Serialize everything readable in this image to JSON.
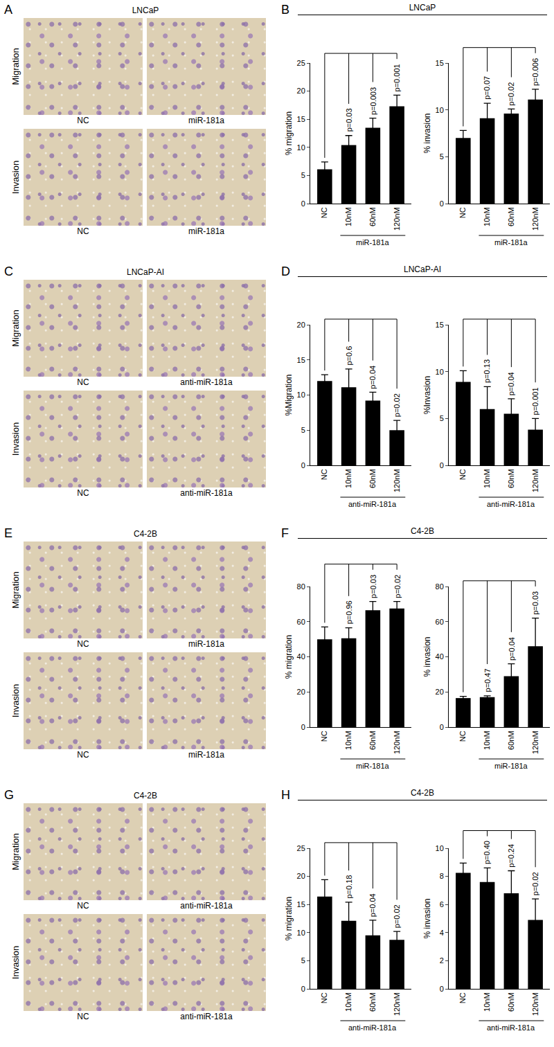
{
  "figure": [
    {
      "image_panel": {
        "letter": "A",
        "title": "LNCaP",
        "rows": [
          "Migration",
          "Invasion"
        ],
        "columns": [
          "NC",
          "miR-181a"
        ]
      },
      "chart_panel": {
        "letter": "B",
        "header": "LNCaP"
      }
    },
    {
      "image_panel": {
        "letter": "C",
        "title": "LNCaP-AI",
        "rows": [
          "Migration",
          "Invasion"
        ],
        "columns": [
          "NC",
          "anti-miR-181a"
        ]
      },
      "chart_panel": {
        "letter": "D",
        "header": "LNCaP-AI"
      }
    },
    {
      "image_panel": {
        "letter": "E",
        "title": "C4-2B",
        "rows": [
          "Migration",
          "Invasion"
        ],
        "columns": [
          "NC",
          "miR-181a"
        ]
      },
      "chart_panel": {
        "letter": "F",
        "header": "C4-2B"
      }
    },
    {
      "image_panel": {
        "letter": "G",
        "title": "C4-2B",
        "rows": [
          "Migration",
          "Invasion"
        ],
        "columns": [
          "NC",
          "anti-miR-181a"
        ]
      },
      "chart_panel": {
        "letter": "H",
        "header": "C4-2B"
      }
    }
  ],
  "chart_data": [
    {
      "panel": "B",
      "type": "bar",
      "y_label": "% migration",
      "color": "#000000",
      "categories": [
        "NC",
        "10nM",
        "60nM",
        "120nM"
      ],
      "values": [
        6.1,
        10.4,
        13.5,
        17.3
      ],
      "errors": [
        1.3,
        1.7,
        1.7,
        2.0
      ],
      "annotations": [
        null,
        "p=0.03",
        "p=0.003",
        "p=0.001"
      ],
      "group": {
        "label": "miR-181a",
        "categories": [
          "10nM",
          "60nM",
          "120nM"
        ]
      },
      "ylim": [
        0,
        25
      ],
      "yticks": [
        0,
        5,
        10,
        15,
        20,
        25
      ]
    },
    {
      "panel": "B",
      "type": "bar",
      "y_label": "% invasion",
      "color": "#000000",
      "categories": [
        "NC",
        "10nM",
        "60nM",
        "120nM"
      ],
      "values": [
        7.0,
        9.1,
        9.6,
        11.1
      ],
      "errors": [
        0.8,
        1.6,
        0.5,
        1.1
      ],
      "annotations": [
        null,
        "p=0.07",
        "p=0.02",
        "p=0.006"
      ],
      "group": {
        "label": "miR-181a",
        "categories": [
          "10nM",
          "60nM",
          "120nM"
        ]
      },
      "ylim": [
        0,
        15
      ],
      "yticks": [
        0,
        5,
        10,
        15
      ]
    },
    {
      "panel": "D",
      "type": "bar",
      "y_label": "%Migration",
      "color": "#000000",
      "categories": [
        "NC",
        "10nM",
        "60nM",
        "120nM"
      ],
      "values": [
        12.0,
        11.1,
        9.2,
        5.0
      ],
      "errors": [
        0.9,
        2.6,
        1.2,
        1.4
      ],
      "annotations": [
        null,
        "p=0.6",
        "p=0.04",
        "p=0.02"
      ],
      "group": {
        "label": "anti-miR-181a",
        "categories": [
          "10nM",
          "60nM",
          "120nM"
        ]
      },
      "ylim": [
        0,
        20
      ],
      "yticks": [
        0,
        5,
        10,
        15,
        20
      ]
    },
    {
      "panel": "D",
      "type": "bar",
      "y_label": "%Invasion",
      "color": "#000000",
      "categories": [
        "NC",
        "10nM",
        "60nM",
        "120nM"
      ],
      "values": [
        8.9,
        6.0,
        5.5,
        3.8
      ],
      "errors": [
        1.2,
        2.4,
        1.6,
        1.2
      ],
      "annotations": [
        null,
        "p=0.13",
        "p=0.04",
        "p=0.001"
      ],
      "group": {
        "label": "anti-miR-181a",
        "categories": [
          "10nM",
          "60nM",
          "120nM"
        ]
      },
      "ylim": [
        0,
        15
      ],
      "yticks": [
        0,
        5,
        10,
        15
      ]
    },
    {
      "panel": "F",
      "type": "bar",
      "y_label": "% migration",
      "color": "#000000",
      "categories": [
        "NC",
        "10nM",
        "60nM",
        "120nM"
      ],
      "values": [
        50,
        50.5,
        66.5,
        67.5
      ],
      "errors": [
        7,
        6,
        5,
        4
      ],
      "annotations": [
        null,
        "p=0.96",
        "p=0.03",
        "p=0.02"
      ],
      "group": {
        "label": "miR-181a",
        "categories": [
          "10nM",
          "60nM",
          "120nM"
        ]
      },
      "ylim": [
        0,
        80
      ],
      "yticks": [
        0,
        20,
        40,
        60,
        80
      ]
    },
    {
      "panel": "F",
      "type": "bar",
      "y_label": "% invasion",
      "color": "#000000",
      "categories": [
        "NC",
        "10nM",
        "60nM",
        "120nM"
      ],
      "values": [
        16.5,
        17,
        29,
        46
      ],
      "errors": [
        1,
        0.8,
        7,
        16
      ],
      "annotations": [
        null,
        "p=0.47",
        "p=0.04",
        "p=0.03"
      ],
      "group": {
        "label": "miR-181a",
        "categories": [
          "10nM",
          "60nM",
          "120nM"
        ]
      },
      "ylim": [
        0,
        80
      ],
      "yticks": [
        0,
        20,
        40,
        60,
        80
      ]
    },
    {
      "panel": "H",
      "type": "bar",
      "y_label": "% migration",
      "color": "#000000",
      "categories": [
        "NC",
        "10nM",
        "60nM",
        "120nM"
      ],
      "values": [
        16.4,
        12.1,
        9.5,
        8.7
      ],
      "errors": [
        3.0,
        3.3,
        2.7,
        1.5
      ],
      "annotations": [
        null,
        "p=0.18",
        "p=0.04",
        "p=0.02"
      ],
      "group": {
        "label": "anti-miR-181a",
        "categories": [
          "10nM",
          "60nM",
          "120nM"
        ]
      },
      "ylim": [
        0,
        25
      ],
      "yticks": [
        0,
        5,
        10,
        15,
        20,
        25
      ]
    },
    {
      "panel": "H",
      "type": "bar",
      "y_label": "% invasion",
      "color": "#000000",
      "categories": [
        "NC",
        "10nM",
        "60nM",
        "120nM"
      ],
      "values": [
        8.25,
        7.6,
        6.8,
        4.9
      ],
      "errors": [
        0.7,
        1.0,
        1.6,
        1.5
      ],
      "annotations": [
        null,
        "p=0.40",
        "p=0.24",
        "p=0.02"
      ],
      "group": {
        "label": "anti-miR-181a",
        "categories": [
          "10nM",
          "60nM",
          "120nM"
        ]
      },
      "ylim": [
        0,
        10
      ],
      "yticks": [
        0,
        2,
        4,
        6,
        8,
        10
      ]
    }
  ]
}
